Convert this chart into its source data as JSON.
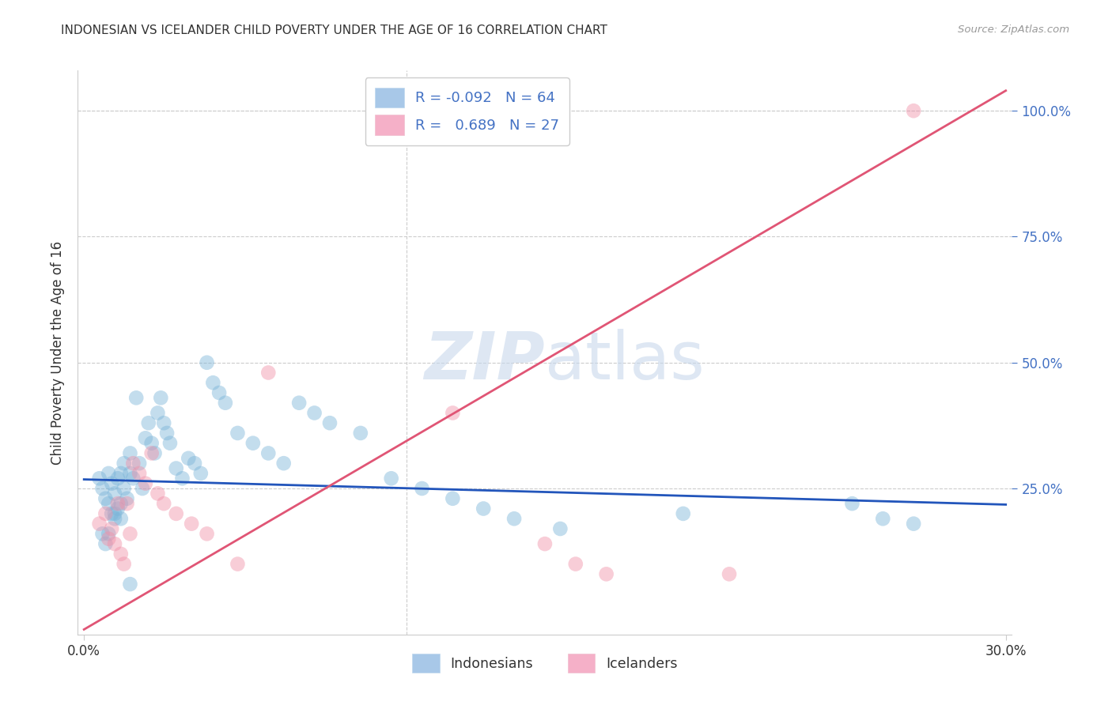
{
  "title": "INDONESIAN VS ICELANDER CHILD POVERTY UNDER THE AGE OF 16 CORRELATION CHART",
  "source": "Source: ZipAtlas.com",
  "ylabel": "Child Poverty Under the Age of 16",
  "xlim_min": -0.002,
  "xlim_max": 0.302,
  "ylim_min": -0.04,
  "ylim_max": 1.08,
  "indonesian_color": "#7ab4d8",
  "icelander_color": "#f090a8",
  "blue_line_color": "#2255bb",
  "pink_line_color": "#e05575",
  "blue_line_y0": 0.268,
  "blue_line_y1": 0.218,
  "pink_line_y0": -0.03,
  "pink_line_y1": 1.04,
  "legend_blue_text": "#4472c4",
  "legend_r_label": "R =",
  "ytick_color": "#4472c4",
  "grid_color": "#cccccc",
  "text_color": "#333333",
  "watermark_color": "#c8d8ec",
  "indo_x": [
    0.005,
    0.006,
    0.007,
    0.008,
    0.008,
    0.009,
    0.009,
    0.01,
    0.01,
    0.011,
    0.011,
    0.012,
    0.012,
    0.013,
    0.013,
    0.014,
    0.015,
    0.015,
    0.016,
    0.017,
    0.018,
    0.019,
    0.02,
    0.021,
    0.022,
    0.023,
    0.024,
    0.025,
    0.026,
    0.027,
    0.028,
    0.03,
    0.032,
    0.034,
    0.036,
    0.038,
    0.04,
    0.042,
    0.044,
    0.046,
    0.05,
    0.055,
    0.06,
    0.065,
    0.07,
    0.075,
    0.08,
    0.09,
    0.1,
    0.11,
    0.12,
    0.13,
    0.14,
    0.155,
    0.195,
    0.25,
    0.26,
    0.27,
    0.006,
    0.007,
    0.008,
    0.01,
    0.012,
    0.015
  ],
  "indo_y": [
    0.27,
    0.25,
    0.23,
    0.28,
    0.22,
    0.26,
    0.2,
    0.24,
    0.19,
    0.27,
    0.21,
    0.28,
    0.22,
    0.3,
    0.25,
    0.23,
    0.32,
    0.28,
    0.27,
    0.43,
    0.3,
    0.25,
    0.35,
    0.38,
    0.34,
    0.32,
    0.4,
    0.43,
    0.38,
    0.36,
    0.34,
    0.29,
    0.27,
    0.31,
    0.3,
    0.28,
    0.5,
    0.46,
    0.44,
    0.42,
    0.36,
    0.34,
    0.32,
    0.3,
    0.42,
    0.4,
    0.38,
    0.36,
    0.27,
    0.25,
    0.23,
    0.21,
    0.19,
    0.17,
    0.2,
    0.22,
    0.19,
    0.18,
    0.16,
    0.14,
    0.16,
    0.2,
    0.19,
    0.06
  ],
  "ice_x": [
    0.005,
    0.007,
    0.008,
    0.009,
    0.01,
    0.011,
    0.012,
    0.013,
    0.014,
    0.015,
    0.016,
    0.018,
    0.02,
    0.022,
    0.024,
    0.026,
    0.03,
    0.035,
    0.04,
    0.05,
    0.06,
    0.12,
    0.15,
    0.16,
    0.17,
    0.21,
    0.27
  ],
  "ice_y": [
    0.18,
    0.2,
    0.15,
    0.17,
    0.14,
    0.22,
    0.12,
    0.1,
    0.22,
    0.16,
    0.3,
    0.28,
    0.26,
    0.32,
    0.24,
    0.22,
    0.2,
    0.18,
    0.16,
    0.1,
    0.48,
    0.4,
    0.14,
    0.1,
    0.08,
    0.08,
    1.0
  ]
}
